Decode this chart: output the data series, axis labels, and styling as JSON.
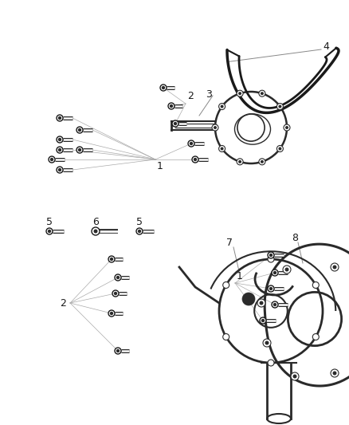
{
  "bg_color": "#ffffff",
  "lc": "#1a1a1a",
  "gc": "#999999",
  "figsize": [
    4.38,
    5.33
  ],
  "dpi": 100
}
